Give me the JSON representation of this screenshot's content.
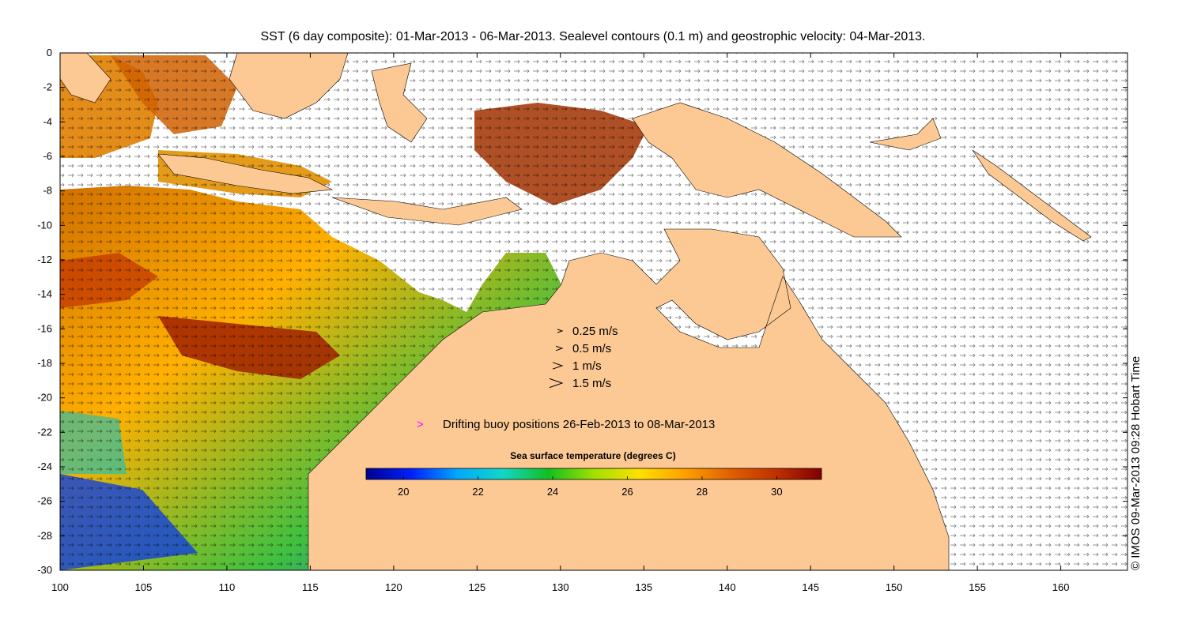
{
  "title": "SST (6 day composite): 01-Mar-2013 - 06-Mar-2013. Sealevel contours (0.1 m) and geostrophic velocity: 04-Mar-2013.",
  "map": {
    "lon_range": [
      100,
      164
    ],
    "lat_range": [
      -30,
      0
    ],
    "x_ticks": [
      "100",
      "105",
      "110",
      "115",
      "120",
      "125",
      "130",
      "135",
      "140",
      "145",
      "150",
      "155",
      "160"
    ],
    "x_tick_values": [
      100,
      105,
      110,
      115,
      120,
      125,
      130,
      135,
      140,
      145,
      150,
      155,
      160
    ],
    "y_ticks": [
      "0",
      "-2",
      "-4",
      "-6",
      "-8",
      "-10",
      "-12",
      "-14",
      "-16",
      "-18",
      "-20",
      "-22",
      "-24",
      "-26",
      "-28",
      "-30"
    ],
    "y_tick_values": [
      0,
      -2,
      -4,
      -6,
      -8,
      -10,
      -12,
      -14,
      -16,
      -18,
      -20,
      -22,
      -24,
      -26,
      -28,
      -30
    ],
    "land_color": "#fcc995",
    "ocean_nodata_color": "#ffffff"
  },
  "velocity_legend": {
    "items": [
      {
        "label": "0.25 m/s",
        "speed": 0.25
      },
      {
        "label": "0.5 m/s",
        "speed": 0.5
      },
      {
        "label": "1 m/s",
        "speed": 1
      },
      {
        "label": "1.5 m/s",
        "speed": 1.5
      }
    ]
  },
  "buoy_legend": {
    "symbol": ">",
    "label": "Drifting buoy positions 26-Feb-2013 to 08-Mar-2013",
    "color": "#ff00ff"
  },
  "colorbar": {
    "title": "Sea surface temperature (degrees C)",
    "min": 19,
    "max": 31.2,
    "tick_labels": [
      "20",
      "22",
      "24",
      "26",
      "28",
      "30"
    ],
    "tick_values": [
      20,
      22,
      24,
      26,
      28,
      30
    ],
    "colors": [
      "#00008f",
      "#0020ff",
      "#00a8ff",
      "#10d8c8",
      "#10c020",
      "#a0e000",
      "#ffe000",
      "#ffa000",
      "#e06000",
      "#c03000",
      "#800000"
    ]
  },
  "credit": "© IMOS 09-Mar-2013 09:28 Hobart Time"
}
